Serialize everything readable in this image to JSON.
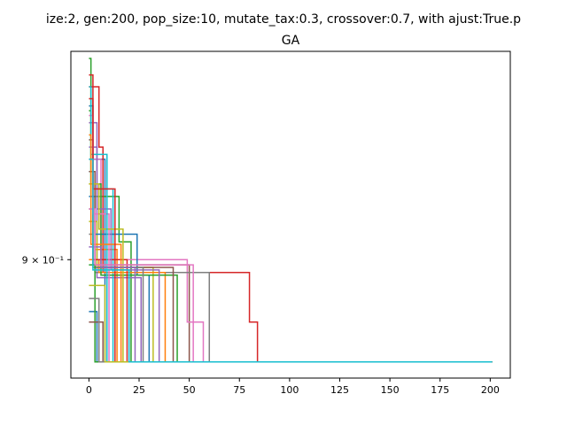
{
  "chart_data": {
    "type": "line",
    "title": "GA",
    "suptitle": "ize:2, gen:200, pop_size:10, mutate_tax:0.3, crossover:0.7, with ajust:True.p",
    "xlabel": "",
    "ylabel": "",
    "xlim": [
      -9,
      210
    ],
    "ylim": [
      0.855,
      0.985
    ],
    "yscale": "log",
    "xticks": [
      0,
      25,
      50,
      75,
      100,
      125,
      150,
      175,
      200
    ],
    "yticks": [
      {
        "value": 0.9,
        "label": "9 × 10⁻¹"
      }
    ],
    "grid": false,
    "legend": "none",
    "final_value": 0.861,
    "colors": [
      "#1f77b4",
      "#ff7f0e",
      "#2ca02c",
      "#d62728",
      "#9467bd",
      "#8c564b",
      "#e377c2",
      "#7f7f7f",
      "#bcbd22",
      "#17becf"
    ],
    "series": [
      {
        "color": "#1f77b4",
        "points": [
          [
            0,
            0.962
          ],
          [
            2,
            0.962
          ],
          [
            2,
            0.94
          ],
          [
            8,
            0.94
          ],
          [
            8,
            0.861
          ],
          [
            201,
            0.861
          ]
        ]
      },
      {
        "color": "#ff7f0e",
        "points": [
          [
            0,
            0.93
          ],
          [
            3,
            0.93
          ],
          [
            3,
            0.904
          ],
          [
            14,
            0.904
          ],
          [
            14,
            0.861
          ],
          [
            201,
            0.861
          ]
        ]
      },
      {
        "color": "#2ca02c",
        "points": [
          [
            0,
            0.982
          ],
          [
            1,
            0.982
          ],
          [
            1,
            0.925
          ],
          [
            15,
            0.925
          ],
          [
            15,
            0.907
          ],
          [
            21,
            0.907
          ],
          [
            21,
            0.861
          ],
          [
            201,
            0.861
          ]
        ]
      },
      {
        "color": "#d62728",
        "points": [
          [
            0,
            0.97
          ],
          [
            5,
            0.97
          ],
          [
            5,
            0.945
          ],
          [
            7,
            0.945
          ],
          [
            7,
            0.895
          ],
          [
            80,
            0.895
          ],
          [
            80,
            0.876
          ],
          [
            84,
            0.876
          ],
          [
            84,
            0.861
          ],
          [
            201,
            0.861
          ]
        ]
      },
      {
        "color": "#9467bd",
        "points": [
          [
            0,
            0.955
          ],
          [
            4,
            0.955
          ],
          [
            4,
            0.893
          ],
          [
            26,
            0.893
          ],
          [
            26,
            0.861
          ],
          [
            201,
            0.861
          ]
        ]
      },
      {
        "color": "#8c564b",
        "points": [
          [
            0,
            0.948
          ],
          [
            2,
            0.948
          ],
          [
            2,
            0.898
          ],
          [
            50,
            0.898
          ],
          [
            50,
            0.861
          ],
          [
            201,
            0.861
          ]
        ]
      },
      {
        "color": "#e377c2",
        "points": [
          [
            0,
            0.94
          ],
          [
            6,
            0.94
          ],
          [
            6,
            0.9
          ],
          [
            49,
            0.9
          ],
          [
            49,
            0.876
          ],
          [
            57,
            0.876
          ],
          [
            57,
            0.861
          ],
          [
            201,
            0.861
          ]
        ]
      },
      {
        "color": "#7f7f7f",
        "points": [
          [
            0,
            0.92
          ],
          [
            3,
            0.92
          ],
          [
            3,
            0.895
          ],
          [
            60,
            0.895
          ],
          [
            60,
            0.861
          ],
          [
            201,
            0.861
          ]
        ]
      },
      {
        "color": "#bcbd22",
        "points": [
          [
            0,
            0.915
          ],
          [
            4,
            0.915
          ],
          [
            4,
            0.897
          ],
          [
            32,
            0.897
          ],
          [
            32,
            0.861
          ],
          [
            201,
            0.861
          ]
        ]
      },
      {
        "color": "#17becf",
        "points": [
          [
            0,
            0.935
          ],
          [
            2,
            0.935
          ],
          [
            2,
            0.928
          ],
          [
            12,
            0.928
          ],
          [
            12,
            0.861
          ],
          [
            201,
            0.861
          ]
        ]
      },
      {
        "color": "#1f77b4",
        "points": [
          [
            0,
            0.925
          ],
          [
            3,
            0.925
          ],
          [
            3,
            0.91
          ],
          [
            24,
            0.91
          ],
          [
            24,
            0.894
          ],
          [
            30,
            0.894
          ],
          [
            30,
            0.861
          ],
          [
            201,
            0.861
          ]
        ]
      },
      {
        "color": "#ff7f0e",
        "points": [
          [
            0,
            0.9
          ],
          [
            5,
            0.9
          ],
          [
            5,
            0.895
          ],
          [
            38,
            0.895
          ],
          [
            38,
            0.861
          ],
          [
            201,
            0.861
          ]
        ]
      },
      {
        "color": "#2ca02c",
        "points": [
          [
            0,
            0.96
          ],
          [
            1,
            0.96
          ],
          [
            1,
            0.93
          ],
          [
            6,
            0.93
          ],
          [
            6,
            0.894
          ],
          [
            44,
            0.894
          ],
          [
            44,
            0.861
          ],
          [
            201,
            0.861
          ]
        ]
      },
      {
        "color": "#d62728",
        "points": [
          [
            0,
            0.975
          ],
          [
            2,
            0.975
          ],
          [
            2,
            0.9
          ],
          [
            19,
            0.9
          ],
          [
            19,
            0.861
          ],
          [
            201,
            0.861
          ]
        ]
      },
      {
        "color": "#9467bd",
        "points": [
          [
            0,
            0.945
          ],
          [
            4,
            0.945
          ],
          [
            4,
            0.92
          ],
          [
            11,
            0.92
          ],
          [
            11,
            0.896
          ],
          [
            35,
            0.896
          ],
          [
            35,
            0.861
          ],
          [
            201,
            0.861
          ]
        ]
      },
      {
        "color": "#8c564b",
        "points": [
          [
            0,
            0.935
          ],
          [
            3,
            0.935
          ],
          [
            3,
            0.897
          ],
          [
            42,
            0.897
          ],
          [
            42,
            0.861
          ],
          [
            201,
            0.861
          ]
        ]
      },
      {
        "color": "#e377c2",
        "points": [
          [
            0,
            0.958
          ],
          [
            2,
            0.958
          ],
          [
            2,
            0.918
          ],
          [
            10,
            0.918
          ],
          [
            10,
            0.861
          ],
          [
            201,
            0.861
          ]
        ]
      },
      {
        "color": "#7f7f7f",
        "points": [
          [
            0,
            0.91
          ],
          [
            2,
            0.91
          ],
          [
            2,
            0.897
          ],
          [
            27,
            0.897
          ],
          [
            27,
            0.861
          ],
          [
            201,
            0.861
          ]
        ]
      },
      {
        "color": "#bcbd22",
        "points": [
          [
            0,
            0.93
          ],
          [
            5,
            0.93
          ],
          [
            5,
            0.912
          ],
          [
            17,
            0.912
          ],
          [
            17,
            0.861
          ],
          [
            201,
            0.861
          ]
        ]
      },
      {
        "color": "#17becf",
        "points": [
          [
            0,
            0.97
          ],
          [
            1,
            0.97
          ],
          [
            1,
            0.942
          ],
          [
            9,
            0.942
          ],
          [
            9,
            0.861
          ],
          [
            201,
            0.861
          ]
        ]
      },
      {
        "color": "#1f77b4",
        "points": [
          [
            0,
            0.88
          ],
          [
            4,
            0.88
          ],
          [
            4,
            0.861
          ],
          [
            201,
            0.861
          ]
        ]
      },
      {
        "color": "#ff7f0e",
        "points": [
          [
            0,
            0.95
          ],
          [
            1,
            0.95
          ],
          [
            1,
            0.906
          ],
          [
            16,
            0.906
          ],
          [
            16,
            0.861
          ],
          [
            201,
            0.861
          ]
        ]
      },
      {
        "color": "#2ca02c",
        "points": [
          [
            0,
            0.898
          ],
          [
            3,
            0.898
          ],
          [
            3,
            0.861
          ],
          [
            201,
            0.861
          ]
        ]
      },
      {
        "color": "#d62728",
        "points": [
          [
            0,
            0.965
          ],
          [
            2,
            0.965
          ],
          [
            2,
            0.928
          ],
          [
            13,
            0.928
          ],
          [
            13,
            0.861
          ],
          [
            201,
            0.861
          ]
        ]
      },
      {
        "color": "#9467bd",
        "points": [
          [
            0,
            0.905
          ],
          [
            6,
            0.905
          ],
          [
            6,
            0.897
          ],
          [
            23,
            0.897
          ],
          [
            23,
            0.861
          ],
          [
            201,
            0.861
          ]
        ]
      },
      {
        "color": "#8c564b",
        "points": [
          [
            0,
            0.876
          ],
          [
            7,
            0.876
          ],
          [
            7,
            0.861
          ],
          [
            201,
            0.861
          ]
        ]
      },
      {
        "color": "#e377c2",
        "points": [
          [
            0,
            0.92
          ],
          [
            3,
            0.92
          ],
          [
            3,
            0.898
          ],
          [
            52,
            0.898
          ],
          [
            52,
            0.861
          ],
          [
            201,
            0.861
          ]
        ]
      },
      {
        "color": "#7f7f7f",
        "points": [
          [
            0,
            0.885
          ],
          [
            5,
            0.885
          ],
          [
            5,
            0.861
          ],
          [
            201,
            0.861
          ]
        ]
      },
      {
        "color": "#bcbd22",
        "points": [
          [
            0,
            0.89
          ],
          [
            8,
            0.89
          ],
          [
            8,
            0.861
          ],
          [
            201,
            0.861
          ]
        ]
      },
      {
        "color": "#17becf",
        "points": [
          [
            0,
            0.94
          ],
          [
            2,
            0.94
          ],
          [
            2,
            0.896
          ],
          [
            20,
            0.896
          ],
          [
            20,
            0.861
          ],
          [
            201,
            0.861
          ]
        ]
      }
    ]
  }
}
